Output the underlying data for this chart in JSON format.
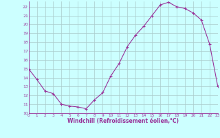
{
  "x": [
    0,
    1,
    2,
    3,
    4,
    5,
    6,
    7,
    8,
    9,
    10,
    11,
    12,
    13,
    14,
    15,
    16,
    17,
    18,
    19,
    20,
    21,
    22,
    23
  ],
  "y": [
    15.0,
    13.8,
    12.5,
    12.2,
    11.0,
    10.8,
    10.7,
    10.5,
    11.5,
    12.3,
    14.2,
    15.6,
    17.5,
    18.8,
    19.8,
    21.0,
    22.2,
    22.5,
    22.0,
    21.8,
    21.3,
    20.5,
    17.8,
    13.0
  ],
  "xlim": [
    0,
    23
  ],
  "ylim": [
    10,
    22.6
  ],
  "yticks": [
    10,
    11,
    12,
    13,
    14,
    15,
    16,
    17,
    18,
    19,
    20,
    21,
    22
  ],
  "xticks": [
    0,
    1,
    2,
    3,
    4,
    5,
    6,
    7,
    8,
    9,
    10,
    11,
    12,
    13,
    14,
    15,
    16,
    17,
    18,
    19,
    20,
    21,
    22,
    23
  ],
  "xlabel": "Windchill (Refroidissement éolien,°C)",
  "line_color": "#993399",
  "marker": "+",
  "bg_color": "#ccffff",
  "grid_color": "#aacccc",
  "axis_color": "#993399",
  "tick_color": "#993399",
  "label_color": "#993399"
}
